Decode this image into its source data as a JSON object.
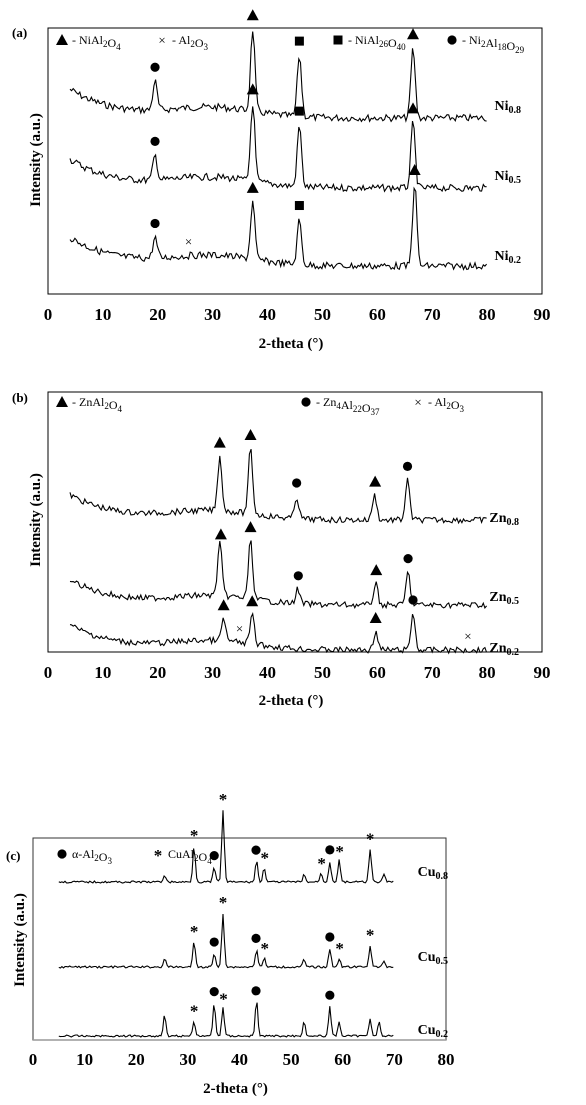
{
  "figure": {
    "panels": [
      {
        "label": "(a)",
        "legend": [
          {
            "marker": "triangle",
            "text": "- NiAl",
            "sub1": "2",
            "mid": "O",
            "sub2": "4"
          },
          {
            "marker": "cross",
            "text": "- Al",
            "sub1": "2",
            "mid": "O",
            "sub2": "3"
          },
          {
            "marker": "square",
            "text": "- NiAl",
            "sub1": "26",
            "mid": "O",
            "sub2": "40"
          },
          {
            "marker": "circle",
            "text": "- Ni",
            "sub1": "2",
            "mid": "Al",
            "sub2": "18",
            "tail": "O",
            "sub3": "29"
          }
        ]
      },
      {
        "label": "(b)",
        "legend": [
          {
            "marker": "triangle",
            "text": "- ZnAl",
            "sub1": "2",
            "mid": "O",
            "sub2": "4"
          },
          {
            "marker": "circle",
            "text": "- Zn",
            "sub1": "4",
            "mid": "Al",
            "sub2": "22",
            "tail": "O",
            "sub3": "37"
          },
          {
            "marker": "cross",
            "text": "- Al",
            "sub1": "2",
            "mid": "O",
            "sub2": "3"
          }
        ]
      },
      {
        "label": "(c)",
        "legend": [
          {
            "marker": "circle",
            "text": "α-Al",
            "sub1": "2",
            "mid": "O",
            "sub2": "3"
          },
          {
            "marker": "star",
            "text": "CuAl",
            "sub1": "2",
            "mid": "O",
            "sub2": "4"
          }
        ]
      }
    ]
  },
  "chart_data": [
    {
      "type": "line",
      "panel": "(a)",
      "xlabel": "2-theta (°)",
      "ylabel": "Intensity (a.u.)",
      "xlim": [
        0,
        90
      ],
      "xticks": [
        0,
        10,
        20,
        30,
        40,
        50,
        60,
        70,
        80,
        90
      ],
      "x_range": [
        4,
        80
      ],
      "series": [
        {
          "name": "Ni0.8",
          "label_main": "Ni",
          "label_sub": "0.8",
          "peaks": [
            [
              19.5,
              0.35
            ],
            [
              37.3,
              1.0
            ],
            [
              45.8,
              0.75
            ],
            [
              66.5,
              0.85
            ]
          ],
          "markers": [
            [
              "circle",
              19.5
            ],
            [
              "triangle",
              37.3
            ],
            [
              "square",
              45.8
            ],
            [
              "triangle",
              66.5
            ]
          ]
        },
        {
          "name": "Ni0.5",
          "label_main": "Ni",
          "label_sub": "0.5",
          "peaks": [
            [
              19.5,
              0.3
            ],
            [
              37.3,
              0.95
            ],
            [
              45.8,
              0.75
            ],
            [
              66.5,
              0.8
            ]
          ],
          "markers": [
            [
              "circle",
              19.5
            ],
            [
              "triangle",
              37.3
            ],
            [
              "square",
              45.8
            ],
            [
              "triangle",
              66.5
            ]
          ]
        },
        {
          "name": "Ni0.2",
          "label_main": "Ni",
          "label_sub": "0.2",
          "peaks": [
            [
              19.5,
              0.25
            ],
            [
              37.3,
              0.7
            ],
            [
              45.8,
              0.55
            ],
            [
              66.8,
              1.0
            ]
          ],
          "markers": [
            [
              "circle",
              19.5
            ],
            [
              "cross",
              25.6
            ],
            [
              "triangle",
              37.3
            ],
            [
              "square",
              45.8
            ],
            [
              "triangle",
              66.8
            ]
          ]
        }
      ]
    },
    {
      "type": "line",
      "panel": "(b)",
      "xlabel": "2-theta (°)",
      "ylabel": "Intensity (a.u.)",
      "xlim": [
        0,
        90
      ],
      "xticks": [
        0,
        10,
        20,
        30,
        40,
        50,
        60,
        70,
        80,
        90
      ],
      "x_range": [
        4,
        80
      ],
      "series": [
        {
          "name": "Zn0.8",
          "label_main": "Zn",
          "label_sub": "0.8",
          "peaks": [
            [
              31.3,
              0.75
            ],
            [
              36.9,
              0.9
            ],
            [
              45.3,
              0.3
            ],
            [
              59.5,
              0.35
            ],
            [
              65.5,
              0.55
            ]
          ],
          "markers": [
            [
              "triangle",
              31.3
            ],
            [
              "triangle",
              36.9
            ],
            [
              "circle",
              45.3
            ],
            [
              "triangle",
              59.6
            ],
            [
              "circle",
              65.5
            ]
          ]
        },
        {
          "name": "Zn0.5",
          "label_main": "Zn",
          "label_sub": "0.5",
          "peaks": [
            [
              31.3,
              0.75
            ],
            [
              36.9,
              0.8
            ],
            [
              45.5,
              0.2
            ],
            [
              59.7,
              0.3
            ],
            [
              65.6,
              0.45
            ]
          ],
          "markers": [
            [
              "triangle",
              31.5
            ],
            [
              "triangle",
              36.9
            ],
            [
              "circle",
              45.6
            ],
            [
              "triangle",
              59.8
            ],
            [
              "circle",
              65.6
            ]
          ]
        },
        {
          "name": "Zn0.2",
          "label_main": "Zn",
          "label_sub": "0.2",
          "peaks": [
            [
              32.0,
              0.3
            ],
            [
              37.2,
              0.4
            ],
            [
              59.7,
              0.25
            ],
            [
              66.5,
              0.5
            ]
          ],
          "markers": [
            [
              "triangle",
              32.0
            ],
            [
              "cross",
              34.9
            ],
            [
              "triangle",
              37.2
            ],
            [
              "triangle",
              59.7
            ],
            [
              "circle",
              66.5
            ],
            [
              "cross",
              76.5
            ]
          ]
        }
      ]
    },
    {
      "type": "line",
      "panel": "(c)",
      "xlabel": "2-theta (°)",
      "ylabel": "Intensity (a.u.)",
      "xlim": [
        0,
        80
      ],
      "xticks": [
        0,
        10,
        20,
        30,
        40,
        50,
        60,
        70,
        80
      ],
      "x_range": [
        5,
        70
      ],
      "series": [
        {
          "name": "Cu0.8",
          "label_main": "Cu",
          "label_sub": "0.8",
          "peaks": [
            [
              25.5,
              0.1
            ],
            [
              31.2,
              0.5
            ],
            [
              35.1,
              0.2
            ],
            [
              36.8,
              1.0
            ],
            [
              43.3,
              0.3
            ],
            [
              44.8,
              0.2
            ],
            [
              52.5,
              0.1
            ],
            [
              55.8,
              0.12
            ],
            [
              57.5,
              0.28
            ],
            [
              59.3,
              0.3
            ],
            [
              65.3,
              0.45
            ],
            [
              68.0,
              0.1
            ]
          ],
          "markers": [
            [
              "star",
              31.2
            ],
            [
              "circle",
              35.1
            ],
            [
              "star",
              36.8
            ],
            [
              "circle",
              43.2
            ],
            [
              "star",
              44.9
            ],
            [
              "star",
              55.9
            ],
            [
              "circle",
              57.5
            ],
            [
              "star",
              59.4
            ],
            [
              "star",
              65.3
            ]
          ]
        },
        {
          "name": "Cu0.5",
          "label_main": "Cu",
          "label_sub": "0.5",
          "peaks": [
            [
              25.5,
              0.12
            ],
            [
              31.2,
              0.35
            ],
            [
              35.1,
              0.18
            ],
            [
              36.8,
              0.75
            ],
            [
              43.3,
              0.25
            ],
            [
              44.8,
              0.12
            ],
            [
              52.5,
              0.1
            ],
            [
              57.5,
              0.25
            ],
            [
              59.3,
              0.12
            ],
            [
              65.3,
              0.3
            ],
            [
              68.0,
              0.08
            ]
          ],
          "markers": [
            [
              "star",
              31.2
            ],
            [
              "circle",
              35.1
            ],
            [
              "star",
              36.8
            ],
            [
              "circle",
              43.2
            ],
            [
              "star",
              44.9
            ],
            [
              "circle",
              57.5
            ],
            [
              "star",
              59.4
            ],
            [
              "star",
              65.3
            ]
          ]
        },
        {
          "name": "Cu0.2",
          "label_main": "Cu",
          "label_sub": "0.2",
          "peaks": [
            [
              25.5,
              0.3
            ],
            [
              31.2,
              0.2
            ],
            [
              35.1,
              0.45
            ],
            [
              36.8,
              0.4
            ],
            [
              43.3,
              0.5
            ],
            [
              52.5,
              0.2
            ],
            [
              57.5,
              0.4
            ],
            [
              59.3,
              0.2
            ],
            [
              65.3,
              0.25
            ],
            [
              67.0,
              0.2
            ]
          ],
          "markers": [
            [
              "star",
              31.2
            ],
            [
              "circle",
              35.1
            ],
            [
              "star",
              36.9
            ],
            [
              "circle",
              43.2
            ],
            [
              "circle",
              57.5
            ]
          ]
        }
      ]
    }
  ]
}
